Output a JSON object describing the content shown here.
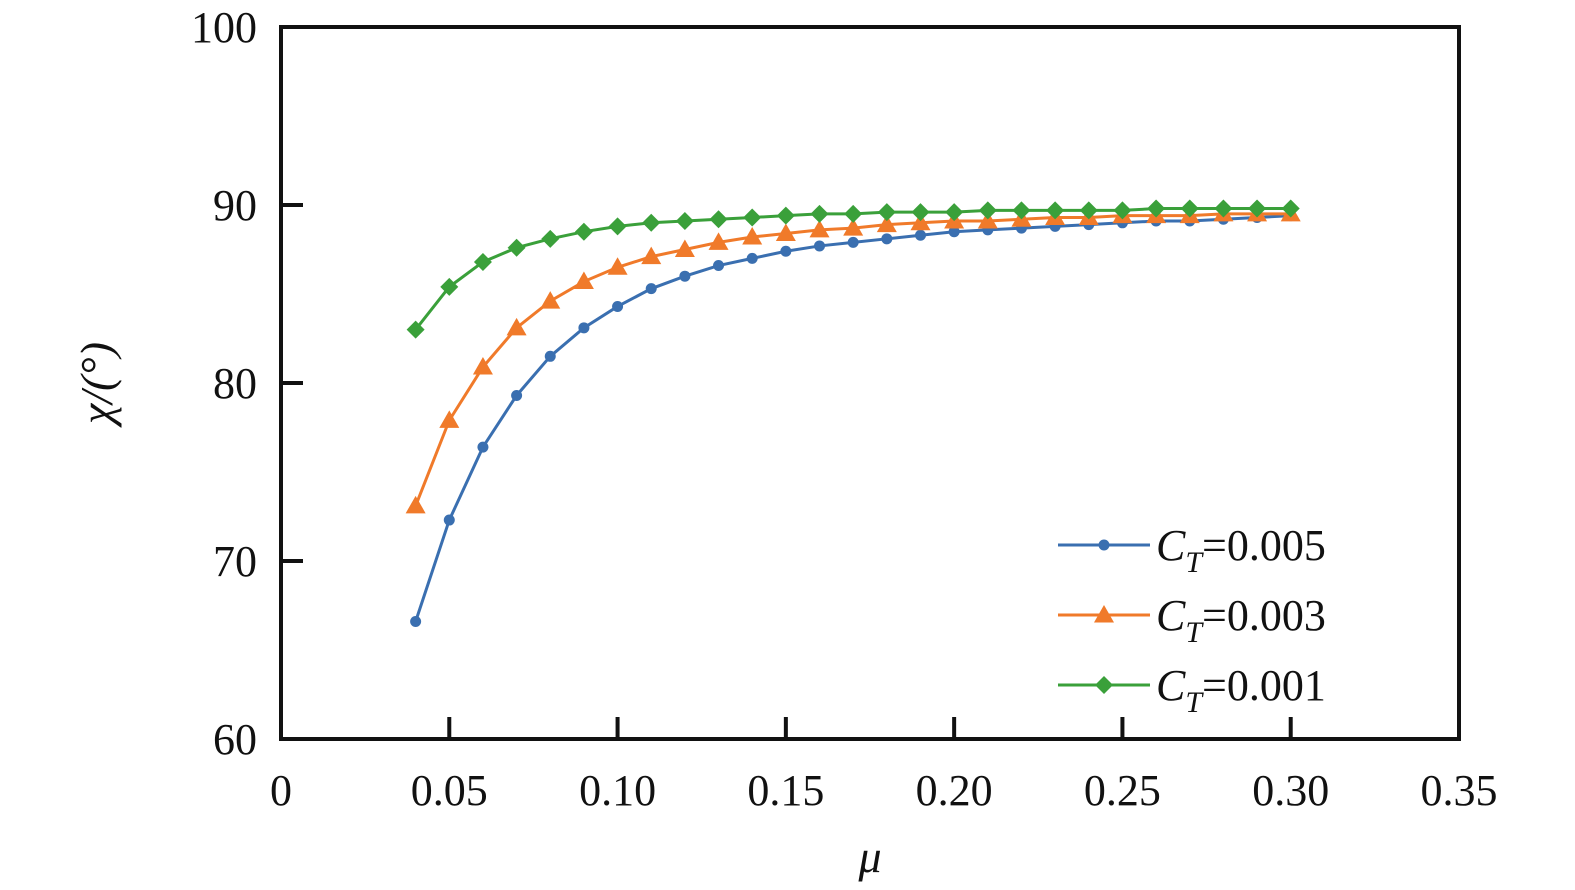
{
  "chart_data": {
    "type": "line",
    "xlabel": "μ",
    "ylabel": "χ/(°)",
    "xlim": [
      0,
      0.35
    ],
    "ylim": [
      60,
      100
    ],
    "xticks": [
      0,
      0.05,
      0.1,
      0.15,
      0.2,
      0.25,
      0.3,
      0.35
    ],
    "xtick_labels": [
      "0",
      "0.05",
      "0.10",
      "0.15",
      "0.20",
      "0.25",
      "0.30",
      "0.35"
    ],
    "yticks": [
      60,
      70,
      80,
      90,
      100
    ],
    "ytick_labels": [
      "60",
      "70",
      "80",
      "90",
      "100"
    ],
    "grid": false,
    "legend_position": "bottom-right",
    "x": [
      0.04,
      0.05,
      0.06,
      0.07,
      0.08,
      0.09,
      0.1,
      0.11,
      0.12,
      0.13,
      0.14,
      0.15,
      0.16,
      0.17,
      0.18,
      0.19,
      0.2,
      0.21,
      0.22,
      0.23,
      0.24,
      0.25,
      0.26,
      0.27,
      0.28,
      0.29,
      0.3
    ],
    "series": [
      {
        "name": "C_T=0.005",
        "label_main": "C",
        "label_sub": "T",
        "label_value": "=0.005",
        "color": "#3a6fb0",
        "marker": "circle",
        "values": [
          66.6,
          72.3,
          76.4,
          79.3,
          81.5,
          83.1,
          84.3,
          85.3,
          86.0,
          86.6,
          87.0,
          87.4,
          87.7,
          87.9,
          88.1,
          88.3,
          88.5,
          88.6,
          88.7,
          88.8,
          88.9,
          89.0,
          89.1,
          89.1,
          89.2,
          89.3,
          89.4
        ]
      },
      {
        "name": "C_T=0.003",
        "label_main": "C",
        "label_sub": "T",
        "label_value": "=0.003",
        "color": "#f07a2a",
        "marker": "triangle",
        "values": [
          73.1,
          77.9,
          80.9,
          83.1,
          84.6,
          85.7,
          86.5,
          87.1,
          87.5,
          87.9,
          88.2,
          88.4,
          88.6,
          88.7,
          88.9,
          89.0,
          89.1,
          89.1,
          89.2,
          89.3,
          89.3,
          89.4,
          89.4,
          89.4,
          89.5,
          89.5,
          89.5
        ]
      },
      {
        "name": "C_T=0.001",
        "label_main": "C",
        "label_sub": "T",
        "label_value": "=0.001",
        "color": "#3aa03a",
        "marker": "diamond",
        "values": [
          83.0,
          85.4,
          86.8,
          87.6,
          88.1,
          88.5,
          88.8,
          89.0,
          89.1,
          89.2,
          89.3,
          89.4,
          89.5,
          89.5,
          89.6,
          89.6,
          89.6,
          89.7,
          89.7,
          89.7,
          89.7,
          89.7,
          89.8,
          89.8,
          89.8,
          89.8,
          89.8
        ]
      }
    ]
  }
}
